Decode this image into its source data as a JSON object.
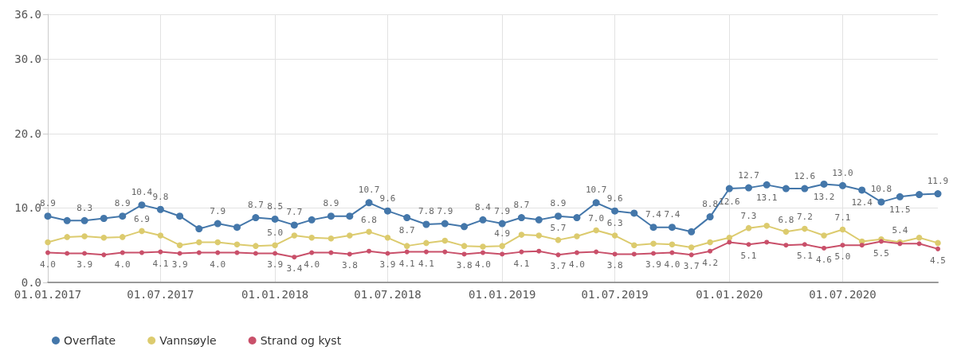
{
  "chart_data": {
    "type": "line",
    "x": [
      "2017-01",
      "2017-02",
      "2017-03",
      "2017-04",
      "2017-05",
      "2017-06",
      "2017-07",
      "2017-08",
      "2017-09",
      "2017-10",
      "2017-11",
      "2017-12",
      "2018-01",
      "2018-02",
      "2018-03",
      "2018-04",
      "2018-05",
      "2018-06",
      "2018-07",
      "2018-08",
      "2018-09",
      "2018-10",
      "2018-11",
      "2018-12",
      "2019-01",
      "2019-02",
      "2019-03",
      "2019-04",
      "2019-05",
      "2019-06",
      "2019-07",
      "2019-08",
      "2019-09",
      "2019-10",
      "2019-11",
      "2019-12",
      "2020-01",
      "2020-02",
      "2020-03",
      "2020-04",
      "2020-05",
      "2020-06",
      "2020-07",
      "2020-08",
      "2020-09",
      "2020-10",
      "2020-11",
      "2020-12"
    ],
    "series": [
      {
        "name": "Overflate",
        "color": "#4477aa",
        "values": [
          8.9,
          8.3,
          8.3,
          8.6,
          8.9,
          10.4,
          9.8,
          8.9,
          7.2,
          7.9,
          7.4,
          8.7,
          8.5,
          7.7,
          8.4,
          8.9,
          8.9,
          10.7,
          9.6,
          8.7,
          7.8,
          7.9,
          7.5,
          8.4,
          7.9,
          8.7,
          8.4,
          8.9,
          8.7,
          10.7,
          9.6,
          9.3,
          7.4,
          7.4,
          6.8,
          8.8,
          12.6,
          12.7,
          13.1,
          12.6,
          12.6,
          13.2,
          13.0,
          12.4,
          10.8,
          11.5,
          11.8,
          11.9
        ],
        "value_labels": [
          "8.9",
          null,
          "8.3",
          null,
          "8.9",
          "10.4",
          "9.8",
          null,
          null,
          "7.9",
          null,
          "8.7",
          "8.5",
          "7.7",
          null,
          "8.9",
          null,
          "10.7",
          "9.6",
          "8.7",
          "7.8",
          "7.9",
          null,
          "8.4",
          "7.9",
          "8.7",
          null,
          "8.9",
          null,
          "10.7",
          "9.6",
          null,
          "7.4",
          "7.4",
          null,
          "8.8",
          "12.6",
          "12.7",
          "13.1",
          null,
          "12.6",
          "13.2",
          "13.0",
          "12.4",
          "10.8",
          "11.5",
          null,
          "11.9"
        ]
      },
      {
        "name": "Vannsøyle",
        "color": "#dccb6e",
        "values": [
          5.4,
          6.1,
          6.2,
          6.0,
          6.1,
          6.9,
          6.3,
          5.0,
          5.4,
          5.4,
          5.1,
          4.9,
          5.0,
          6.3,
          6.0,
          5.9,
          6.3,
          6.8,
          6.0,
          4.9,
          5.3,
          5.6,
          4.9,
          4.8,
          4.9,
          6.4,
          6.3,
          5.7,
          6.2,
          7.0,
          6.3,
          5.0,
          5.2,
          5.1,
          4.7,
          5.4,
          6.0,
          7.3,
          7.6,
          6.8,
          7.2,
          6.3,
          7.1,
          5.5,
          5.8,
          5.4,
          6.0,
          5.3
        ],
        "value_labels": [
          null,
          null,
          null,
          null,
          null,
          "6.9",
          null,
          null,
          null,
          null,
          null,
          null,
          "5.0",
          null,
          null,
          null,
          null,
          "6.8",
          null,
          null,
          null,
          null,
          null,
          null,
          "4.9",
          null,
          null,
          "5.7",
          null,
          "7.0",
          "6.3",
          null,
          null,
          null,
          null,
          null,
          null,
          "7.3",
          null,
          "6.8",
          "7.2",
          null,
          "7.1",
          null,
          null,
          "5.4",
          null,
          null
        ]
      },
      {
        "name": "Strand og kyst",
        "color": "#c9506a",
        "values": [
          4.0,
          3.9,
          3.9,
          3.7,
          4.0,
          4.0,
          4.1,
          3.9,
          4.0,
          4.0,
          4.0,
          3.9,
          3.9,
          3.4,
          4.0,
          4.0,
          3.8,
          4.2,
          3.9,
          4.1,
          4.1,
          4.1,
          3.8,
          4.0,
          3.8,
          4.1,
          4.2,
          3.7,
          4.0,
          4.1,
          3.8,
          3.8,
          3.9,
          4.0,
          3.7,
          4.2,
          5.4,
          5.1,
          5.4,
          5.0,
          5.1,
          4.6,
          5.0,
          5.0,
          5.5,
          5.2,
          5.2,
          4.5
        ],
        "value_labels": [
          "4.0",
          null,
          "3.9",
          null,
          "4.0",
          null,
          "4.1",
          "3.9",
          null,
          "4.0",
          null,
          null,
          "3.9",
          "3.4",
          "4.0",
          null,
          "3.8",
          null,
          "3.9",
          "4.1",
          "4.1",
          null,
          "3.8",
          "4.0",
          null,
          "4.1",
          null,
          "3.7",
          "4.0",
          null,
          "3.8",
          null,
          "3.9",
          "4.0",
          "3.7",
          "4.2",
          null,
          "5.1",
          null,
          null,
          "5.1",
          "4.6",
          "5.0",
          null,
          "5.5",
          null,
          null,
          "4.5"
        ]
      }
    ],
    "xlim": [
      "2017-01",
      "2020-12"
    ],
    "xticks": [
      {
        "value": "2017-01",
        "label": "01.01.2017"
      },
      {
        "value": "2017-07",
        "label": "01.07.2017"
      },
      {
        "value": "2018-01",
        "label": "01.01.2018"
      },
      {
        "value": "2018-07",
        "label": "01.07.2018"
      },
      {
        "value": "2019-01",
        "label": "01.01.2019"
      },
      {
        "value": "2019-07",
        "label": "01.07.2019"
      },
      {
        "value": "2020-01",
        "label": "01.01.2020"
      },
      {
        "value": "2020-07",
        "label": "01.07.2020"
      }
    ],
    "ylim": [
      0,
      36
    ],
    "yticks": [
      {
        "value": 0,
        "label": "0.0"
      },
      {
        "value": 10,
        "label": "10.0"
      },
      {
        "value": 20,
        "label": "20.0"
      },
      {
        "value": 30,
        "label": "30.0"
      },
      {
        "value": 36,
        "label": "36.0"
      }
    ],
    "grid": true,
    "legend": "bottom left",
    "marker": "circle",
    "line_style": "solid"
  }
}
